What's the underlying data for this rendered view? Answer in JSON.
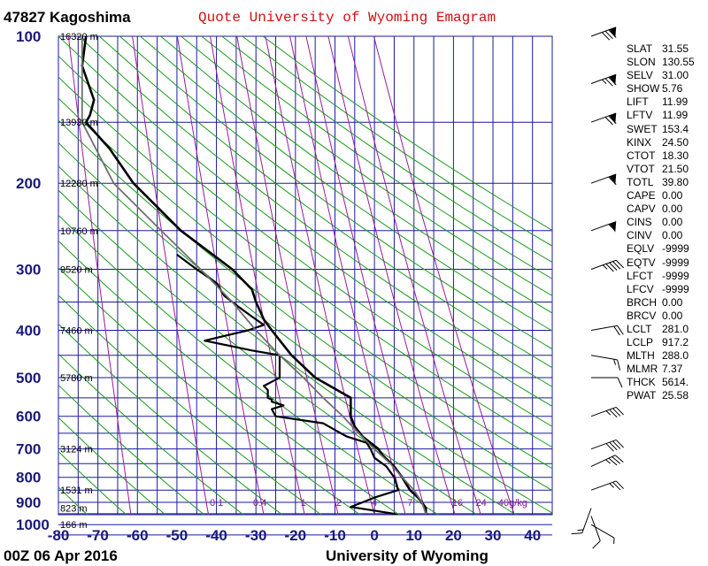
{
  "header": {
    "station": "47827 Kagoshima",
    "title": "Quote University of Wyoming Emagram"
  },
  "footer": {
    "time": "00Z 06 Apr 2016",
    "source": "University of Wyoming"
  },
  "chart_data": {
    "type": "line",
    "y_axis": {
      "scale": "log",
      "ticks": [
        100,
        200,
        300,
        400,
        500,
        600,
        700,
        800,
        900,
        1000
      ],
      "range": [
        1050,
        100
      ]
    },
    "x_axis": {
      "ticks": [
        -80,
        -70,
        -60,
        -50,
        -40,
        -30,
        -20,
        -10,
        0,
        10,
        20,
        30,
        40
      ],
      "range": [
        -80,
        45
      ]
    },
    "grid": true,
    "height_labels": [
      {
        "p": 100,
        "text": "16320 m"
      },
      {
        "p": 150,
        "text": "13930 m"
      },
      {
        "p": 200,
        "text": "12280 m"
      },
      {
        "p": 250,
        "text": "10760 m"
      },
      {
        "p": 300,
        "text": "9520 m"
      },
      {
        "p": 400,
        "text": "7460 m"
      },
      {
        "p": 500,
        "text": "5780 m"
      },
      {
        "p": 700,
        "text": "3124 m"
      },
      {
        "p": 850,
        "text": "1531 m"
      },
      {
        "p": 925,
        "text": "823 m"
      },
      {
        "p": 1000,
        "text": "166 m"
      }
    ],
    "mixing_ratio_labels": [
      {
        "t": -40,
        "text": "0.1"
      },
      {
        "t": -29,
        "text": "0.4"
      },
      {
        "t": -18,
        "text": "1"
      },
      {
        "t": -9,
        "text": "2"
      },
      {
        "t": 0,
        "text": "4"
      },
      {
        "t": 9,
        "text": "7"
      },
      {
        "t": 21,
        "text": "16"
      },
      {
        "t": 27,
        "text": "24"
      },
      {
        "t": 35,
        "text": "40g/kg"
      }
    ],
    "series": [
      {
        "color": "#000000",
        "points": [
          [
            100,
            -73
          ],
          [
            115,
            -74
          ],
          [
            135,
            -71
          ],
          [
            145,
            -72
          ],
          [
            150,
            -73
          ],
          [
            170,
            -67
          ],
          [
            200,
            -61
          ],
          [
            250,
            -49
          ],
          [
            300,
            -36
          ],
          [
            330,
            -31
          ],
          [
            350,
            -30
          ],
          [
            380,
            -28
          ],
          [
            400,
            -26
          ],
          [
            450,
            -21
          ],
          [
            500,
            -15
          ],
          [
            550,
            -6
          ],
          [
            600,
            -6
          ],
          [
            630,
            -5
          ],
          [
            660,
            -3
          ],
          [
            700,
            1
          ],
          [
            720,
            2
          ],
          [
            760,
            5
          ],
          [
            800,
            7
          ],
          [
            850,
            9
          ],
          [
            880,
            11
          ],
          [
            900,
            12
          ],
          [
            925,
            13
          ],
          [
            950,
            13
          ],
          [
            970,
            14
          ],
          [
            985,
            14
          ],
          [
            1000,
            14
          ]
        ]
      },
      {
        "color": "#000000",
        "points": [
          [
            280,
            -50
          ],
          [
            300,
            -45
          ],
          [
            320,
            -40
          ],
          [
            340,
            -38
          ],
          [
            360,
            -34
          ],
          [
            375,
            -31
          ],
          [
            390,
            -28
          ],
          [
            400,
            -32
          ],
          [
            420,
            -43
          ],
          [
            440,
            -31
          ],
          [
            450,
            -24
          ],
          [
            470,
            -24
          ],
          [
            500,
            -24
          ],
          [
            510,
            -26
          ],
          [
            520,
            -28
          ],
          [
            530,
            -27
          ],
          [
            550,
            -27
          ],
          [
            555,
            -26
          ],
          [
            560,
            -26
          ],
          [
            570,
            -23
          ],
          [
            580,
            -26
          ],
          [
            600,
            -25
          ],
          [
            620,
            -13
          ],
          [
            640,
            -10
          ],
          [
            660,
            -7
          ],
          [
            680,
            -2
          ],
          [
            700,
            -1
          ],
          [
            730,
            0
          ],
          [
            760,
            3
          ],
          [
            800,
            5
          ],
          [
            850,
            6
          ],
          [
            880,
            0
          ],
          [
            900,
            -3
          ],
          [
            920,
            -6
          ],
          [
            950,
            5
          ],
          [
            975,
            8
          ],
          [
            990,
            11
          ],
          [
            1000,
            13
          ]
        ]
      },
      {
        "color": "#707070",
        "points": [
          [
            100,
            -74
          ],
          [
            150,
            -74
          ],
          [
            200,
            -66
          ],
          [
            250,
            -54
          ],
          [
            300,
            -44
          ],
          [
            350,
            -36
          ],
          [
            400,
            -30
          ],
          [
            450,
            -24
          ],
          [
            500,
            -18
          ],
          [
            550,
            -13
          ],
          [
            600,
            -8
          ],
          [
            650,
            -4
          ],
          [
            700,
            0
          ],
          [
            750,
            4
          ],
          [
            800,
            7
          ],
          [
            850,
            10
          ],
          [
            900,
            12
          ],
          [
            950,
            13
          ],
          [
            1000,
            14
          ]
        ]
      }
    ],
    "wind_barbs": [
      {
        "p": 100,
        "dir": 250,
        "spd": 80
      },
      {
        "p": 125,
        "dir": 250,
        "spd": 75
      },
      {
        "p": 150,
        "dir": 250,
        "spd": 70
      },
      {
        "p": 200,
        "dir": 250,
        "spd": 60
      },
      {
        "p": 250,
        "dir": 250,
        "spd": 55
      },
      {
        "p": 300,
        "dir": 250,
        "spd": 45
      },
      {
        "p": 400,
        "dir": 260,
        "spd": 20
      },
      {
        "p": 450,
        "dir": 280,
        "spd": 15
      },
      {
        "p": 500,
        "dir": 270,
        "spd": 10
      },
      {
        "p": 600,
        "dir": 250,
        "spd": 35
      },
      {
        "p": 700,
        "dir": 250,
        "spd": 40
      },
      {
        "p": 760,
        "dir": 245,
        "spd": 35
      },
      {
        "p": 850,
        "dir": 250,
        "spd": 25
      },
      {
        "p": 925,
        "dir": 20,
        "spd": 15
      },
      {
        "p": 960,
        "dir": 340,
        "spd": 10
      },
      {
        "p": 1000,
        "dir": 300,
        "spd": 5
      }
    ]
  },
  "indices": [
    {
      "k": "SLAT",
      "v": "31.55"
    },
    {
      "k": "SLON",
      "v": "130.55"
    },
    {
      "k": "SELV",
      "v": "31.00"
    },
    {
      "k": "SHOW",
      "v": "5.76"
    },
    {
      "k": "LIFT",
      "v": "11.99"
    },
    {
      "k": "LFTV",
      "v": "11.99"
    },
    {
      "k": "SWET",
      "v": "153.4"
    },
    {
      "k": "KINX",
      "v": "24.50"
    },
    {
      "k": "CTOT",
      "v": "18.30"
    },
    {
      "k": "VTOT",
      "v": "21.50"
    },
    {
      "k": "TOTL",
      "v": "39.80"
    },
    {
      "k": "CAPE",
      "v": "0.00"
    },
    {
      "k": "CAPV",
      "v": "0.00"
    },
    {
      "k": "CINS",
      "v": "0.00"
    },
    {
      "k": "CINV",
      "v": "0.00"
    },
    {
      "k": "EQLV",
      "v": "-9999"
    },
    {
      "k": "EQTV",
      "v": "-9999"
    },
    {
      "k": "LFCT",
      "v": "-9999"
    },
    {
      "k": "LFCV",
      "v": "-9999"
    },
    {
      "k": "BRCH",
      "v": "0.00"
    },
    {
      "k": "BRCV",
      "v": "0.00"
    },
    {
      "k": "LCLT",
      "v": "281.0"
    },
    {
      "k": "LCLP",
      "v": "917.2"
    },
    {
      "k": "MLTH",
      "v": "288.0"
    },
    {
      "k": "MLMR",
      "v": "7.37"
    },
    {
      "k": "THCK",
      "v": "5614."
    },
    {
      "k": "PWAT",
      "v": "25.58"
    }
  ]
}
